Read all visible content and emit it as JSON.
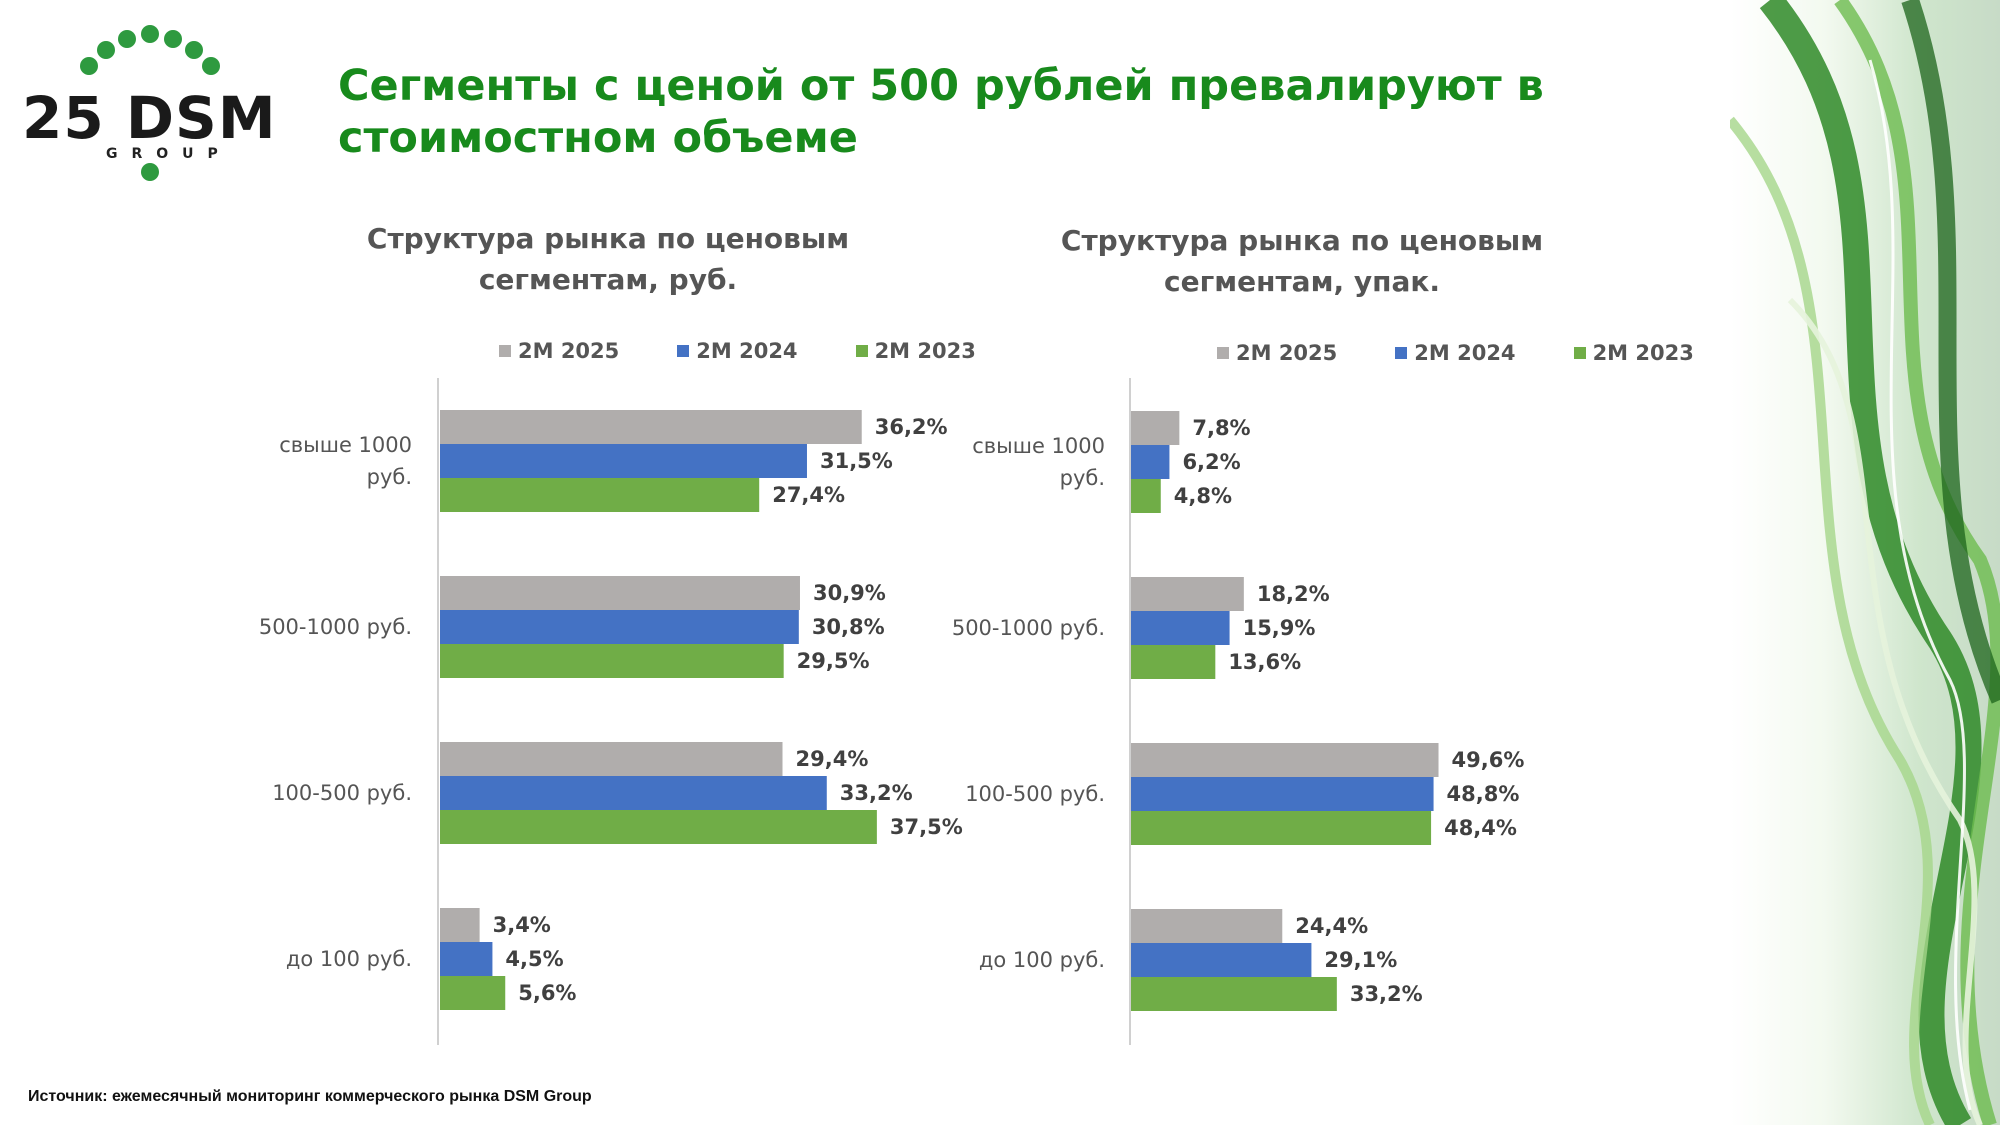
{
  "logo": {
    "number": "25 DSM",
    "group": "GROUP"
  },
  "title": "Сегменты с ценой от 500 рублей превалируют в стоимостном объеме",
  "colors": {
    "2M 2025": "#b0adac",
    "2M 2024": "#4472c4",
    "2M 2023": "#70ad47",
    "title": "#188a1c"
  },
  "chart_data": [
    {
      "type": "bar",
      "orientation": "horizontal",
      "title": "Структура рынка по ценовым сегментам, руб.",
      "legend_position": "top",
      "categories": [
        "свыше 1000 руб.",
        "500-1000 руб.",
        "100-500 руб.",
        "до 100 руб."
      ],
      "series": [
        {
          "name": "2M 2025",
          "values": [
            36.2,
            30.9,
            29.4,
            3.4
          ],
          "labels": [
            "36,2%",
            "30,9%",
            "29,4%",
            "3,4%"
          ]
        },
        {
          "name": "2M 2024",
          "values": [
            31.5,
            30.8,
            33.2,
            4.5
          ],
          "labels": [
            "31,5%",
            "30,8%",
            "33,2%",
            "4,5%"
          ]
        },
        {
          "name": "2M 2023",
          "values": [
            27.4,
            29.5,
            37.5,
            5.6
          ],
          "labels": [
            "27,4%",
            "29,5%",
            "37,5%",
            "5,6%"
          ]
        }
      ],
      "xlim": [
        0,
        40
      ]
    },
    {
      "type": "bar",
      "orientation": "horizontal",
      "title": "Структура рынка по ценовым сегментам, упак.",
      "legend_position": "top",
      "categories": [
        "свыше 1000 руб.",
        "500-1000 руб.",
        "100-500 руб.",
        "до 100 руб."
      ],
      "series": [
        {
          "name": "2M 2025",
          "values": [
            7.8,
            18.2,
            49.6,
            24.4
          ],
          "labels": [
            "7,8%",
            "18,2%",
            "49,6%",
            "24,4%"
          ]
        },
        {
          "name": "2M 2024",
          "values": [
            6.2,
            15.9,
            48.8,
            29.1
          ],
          "labels": [
            "6,2%",
            "15,9%",
            "48,8%",
            "29,1%"
          ]
        },
        {
          "name": "2M 2023",
          "values": [
            4.8,
            13.6,
            48.4,
            33.2
          ],
          "labels": [
            "4,8%",
            "13,6%",
            "48,4%",
            "33,2%"
          ]
        }
      ],
      "xlim": [
        0,
        55
      ]
    }
  ],
  "source": "Источник: ежемесячный мониторинг коммерческого рынка DSM Group"
}
